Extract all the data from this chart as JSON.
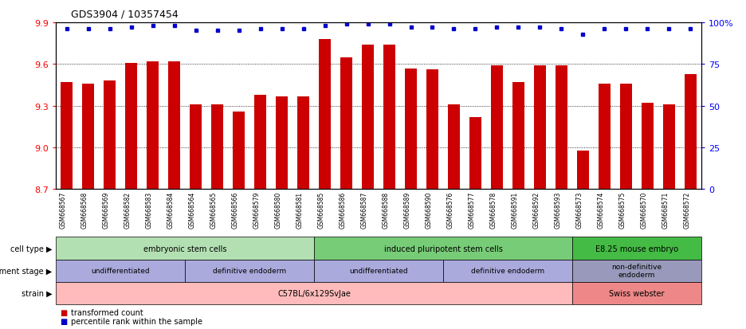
{
  "title": "GDS3904 / 10357454",
  "samples": [
    "GSM668567",
    "GSM668568",
    "GSM668569",
    "GSM668582",
    "GSM668583",
    "GSM668584",
    "GSM668564",
    "GSM668565",
    "GSM668566",
    "GSM668579",
    "GSM668580",
    "GSM668581",
    "GSM668585",
    "GSM668586",
    "GSM668587",
    "GSM668588",
    "GSM668589",
    "GSM668590",
    "GSM668576",
    "GSM668577",
    "GSM668578",
    "GSM668591",
    "GSM668592",
    "GSM668593",
    "GSM668573",
    "GSM668574",
    "GSM668575",
    "GSM668570",
    "GSM668571",
    "GSM668572"
  ],
  "bar_values": [
    9.47,
    9.46,
    9.48,
    9.61,
    9.62,
    9.62,
    9.31,
    9.31,
    9.26,
    9.38,
    9.37,
    9.37,
    9.78,
    9.65,
    9.74,
    9.74,
    9.57,
    9.56,
    9.31,
    9.22,
    9.59,
    9.47,
    9.59,
    9.59,
    8.98,
    9.46,
    9.46,
    9.32,
    9.31,
    9.53
  ],
  "percentile_values": [
    96,
    96,
    96,
    97,
    98,
    98,
    95,
    95,
    95,
    96,
    96,
    96,
    98,
    99,
    99,
    99,
    97,
    97,
    96,
    96,
    97,
    97,
    97,
    96,
    93,
    96,
    96,
    96,
    96,
    96
  ],
  "ylim_left": [
    8.7,
    9.9
  ],
  "yticks_left": [
    8.7,
    9.0,
    9.3,
    9.6,
    9.9
  ],
  "ylim_right": [
    0,
    100
  ],
  "yticks_right": [
    0,
    25,
    50,
    75,
    100
  ],
  "bar_color": "#cc0000",
  "dot_color": "#0000cc",
  "cell_type_groups": [
    {
      "label": "embryonic stem cells",
      "start": 0,
      "end": 11,
      "color": "#b3e0b3"
    },
    {
      "label": "induced pluripotent stem cells",
      "start": 12,
      "end": 23,
      "color": "#77cc77"
    },
    {
      "label": "E8.25 mouse embryo",
      "start": 24,
      "end": 29,
      "color": "#44bb44"
    }
  ],
  "dev_stage_groups": [
    {
      "label": "undifferentiated",
      "start": 0,
      "end": 5,
      "color": "#aaaadd"
    },
    {
      "label": "definitive endoderm",
      "start": 6,
      "end": 11,
      "color": "#aaaadd"
    },
    {
      "label": "undifferentiated",
      "start": 12,
      "end": 17,
      "color": "#aaaadd"
    },
    {
      "label": "definitive endoderm",
      "start": 18,
      "end": 23,
      "color": "#aaaadd"
    },
    {
      "label": "non-definitive\nendoderm",
      "start": 24,
      "end": 29,
      "color": "#9999bb"
    }
  ],
  "strain_groups": [
    {
      "label": "C57BL/6x129SvJae",
      "start": 0,
      "end": 23,
      "color": "#ffbbbb"
    },
    {
      "label": "Swiss webster",
      "start": 24,
      "end": 29,
      "color": "#ee8888"
    }
  ],
  "row_labels": [
    "cell type",
    "development stage",
    "strain"
  ]
}
